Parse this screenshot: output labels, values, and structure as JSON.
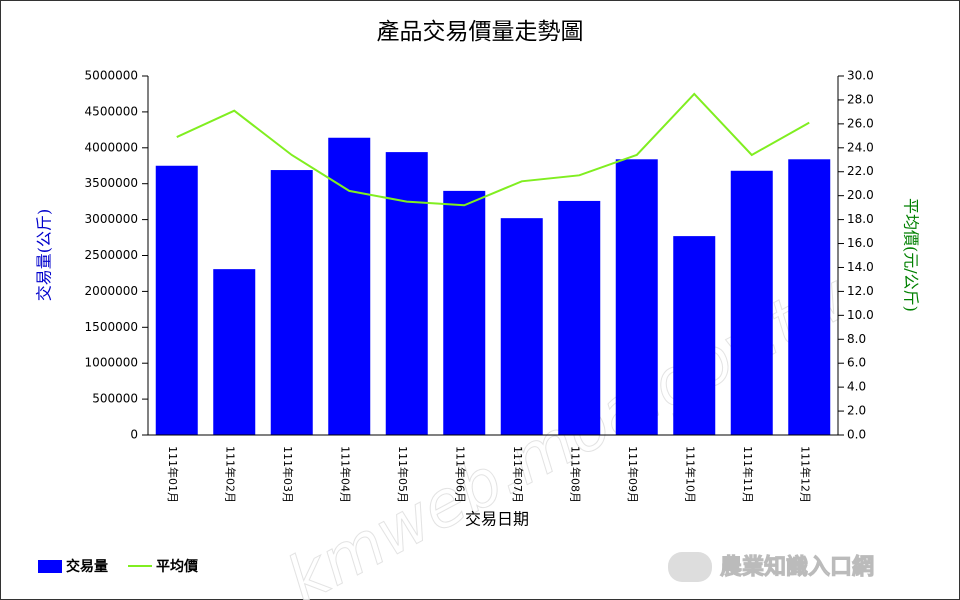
{
  "chart_data": {
    "type": "bar-line",
    "title": "產品交易價量走勢圖",
    "x_label": "交易日期",
    "y_label": "交易量(公斤)",
    "y2_label": "平均價(元/公斤)",
    "categories": [
      "111年01月",
      "111年02月",
      "111年03月",
      "111年04月",
      "111年05月",
      "111年06月",
      "111年07月",
      "111年08月",
      "111年09月",
      "111年10月",
      "111年11月",
      "111年12月"
    ],
    "series": [
      {
        "name": "交易量",
        "type": "bar",
        "color": "#0000ff",
        "values": [
          3750000,
          2310000,
          3690000,
          4140000,
          3940000,
          3400000,
          3020000,
          3260000,
          3840000,
          2770000,
          3680000,
          3840000
        ]
      },
      {
        "name": "平均價",
        "type": "line",
        "axis": "y2",
        "color": "#80ee20",
        "values": [
          24.9,
          27.1,
          23.4,
          20.4,
          19.5,
          19.2,
          21.2,
          21.7,
          23.4,
          28.5,
          23.4,
          26.1
        ]
      }
    ],
    "ylim": [
      0,
      5000000
    ],
    "yticks": [
      0,
      500000,
      1000000,
      1500000,
      2000000,
      2500000,
      3000000,
      3500000,
      4000000,
      4500000,
      5000000
    ],
    "y2lim": [
      0,
      30
    ],
    "y2ticks": [
      {
        "value": 0,
        "label": "0.0"
      },
      {
        "value": 2,
        "label": "2.0"
      },
      {
        "value": 4,
        "label": "4.0"
      },
      {
        "value": 6,
        "label": "6.0"
      },
      {
        "value": 8,
        "label": "8.0"
      },
      {
        "value": 10,
        "label": "10.0"
      },
      {
        "value": 12,
        "label": "12.0"
      },
      {
        "value": 14,
        "label": "14.0"
      },
      {
        "value": 16,
        "label": "16.0"
      },
      {
        "value": 18,
        "label": "18.0"
      },
      {
        "value": 20,
        "label": "20.0"
      },
      {
        "value": 22,
        "label": "22.0"
      },
      {
        "value": 24,
        "label": "24.0"
      },
      {
        "value": 26,
        "label": "26.0"
      },
      {
        "value": 28,
        "label": "28.0"
      },
      {
        "value": 30,
        "label": "30.0"
      }
    ],
    "grid": false,
    "legend": "bottom-left",
    "y_label_color": "#0000cc",
    "y2_label_color": "#008000"
  },
  "watermark": "kmweb.moa.gov.tw",
  "logo": "農業知識入口網"
}
